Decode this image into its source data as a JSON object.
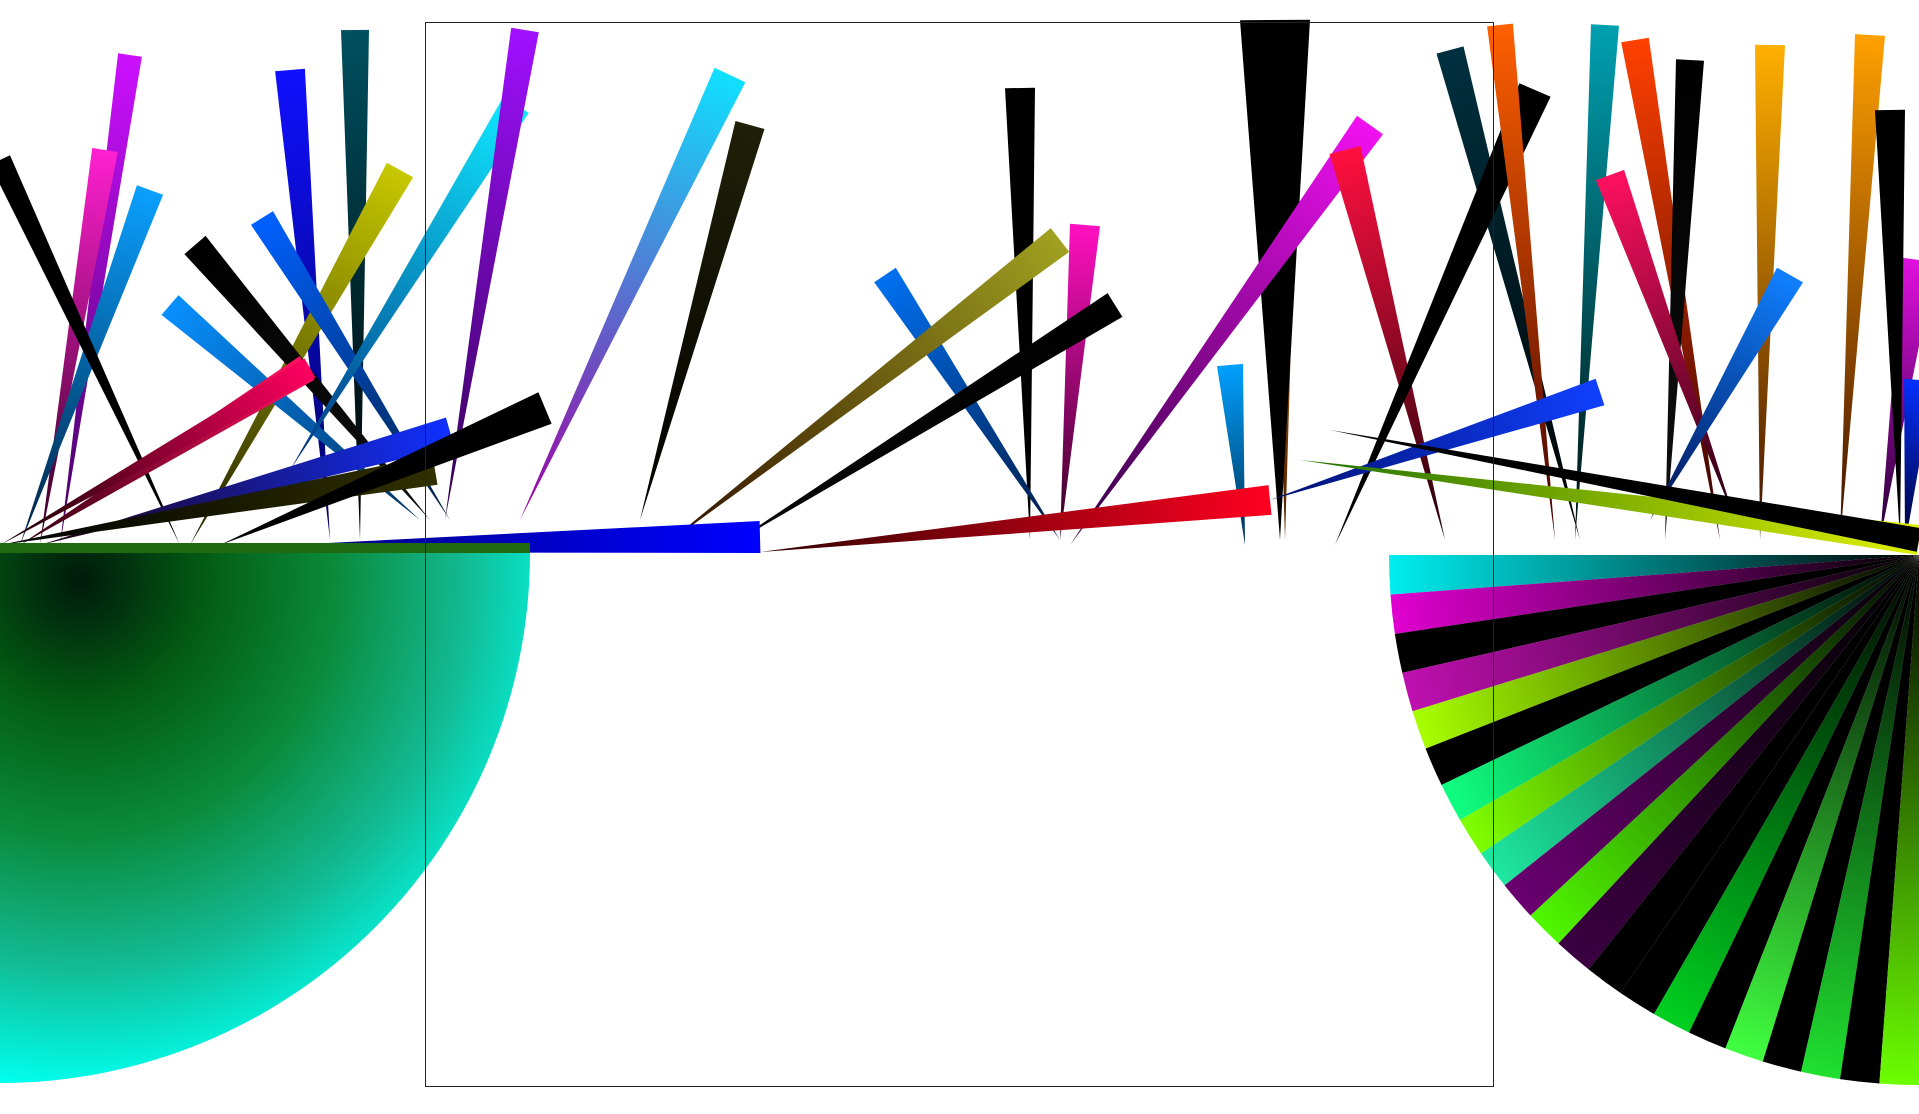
{
  "page": {
    "background": "#ffffff",
    "frame_stroke": "#222222"
  },
  "disc_left": {
    "gradient_stops": [
      "#001a0a",
      "#035c14",
      "#0a8a3a",
      "#13b890",
      "#00ffee",
      "#21f57a"
    ]
  },
  "fan_right": {
    "stripe_colors": [
      "#00eef0",
      "#e000d0",
      "#000000",
      "#c010b0",
      "#a8ff00",
      "#000000",
      "#10ff80",
      "#7fff00",
      "#1ee8a0",
      "#6a0070",
      "#50f800",
      "#3a0040",
      "#000000",
      "#000000",
      "#00d020",
      "#000000",
      "#40ff40",
      "#000000",
      "#20e030",
      "#000000",
      "#6cff00"
    ]
  },
  "spikes": [
    {
      "name": "spike-magenta-left",
      "colors": [
        "#cc10ff",
        "#400060"
      ]
    },
    {
      "name": "spike-pink-left",
      "colors": [
        "#ff20d0",
        "#300020"
      ]
    },
    {
      "name": "spike-skyblue-left",
      "colors": [
        "#0aa0ff",
        "#002040"
      ]
    },
    {
      "name": "spike-black-left-1",
      "colors": [
        "#000000",
        "#000000"
      ]
    },
    {
      "name": "spike-blue-left",
      "colors": [
        "#1010ff",
        "#000060"
      ]
    },
    {
      "name": "spike-teal-left",
      "colors": [
        "#005060",
        "#000000"
      ]
    },
    {
      "name": "spike-olive-left",
      "colors": [
        "#c8c800",
        "#202000"
      ]
    },
    {
      "name": "spike-blue-left-2",
      "colors": [
        "#0060ff",
        "#002040"
      ]
    },
    {
      "name": "spike-black-left-2",
      "colors": [
        "#000000",
        "#101010"
      ]
    },
    {
      "name": "spike-azure-left",
      "colors": [
        "#0890ff",
        "#003060"
      ]
    },
    {
      "name": "spike-crimson-left",
      "colors": [
        "#ff1060",
        "#300010"
      ]
    },
    {
      "name": "spike-cyan-left",
      "colors": [
        "#10e8ff",
        "#003080"
      ]
    },
    {
      "name": "spike-violet-center",
      "colors": [
        "#a010ff",
        "#300050"
      ]
    },
    {
      "name": "spike-cyanmag-center",
      "colors": [
        "#10e0ff",
        "#a000a0"
      ]
    },
    {
      "name": "spike-dark-center",
      "colors": [
        "#202008",
        "#000000"
      ]
    },
    {
      "name": "spike-black-center-1",
      "colors": [
        "#000000",
        "#000000"
      ]
    },
    {
      "name": "spike-azure-center",
      "colors": [
        "#0070f0",
        "#001840"
      ]
    },
    {
      "name": "spike-pink-center",
      "colors": [
        "#ff10c0",
        "#300020"
      ]
    },
    {
      "name": "spike-olive-center",
      "colors": [
        "#a0a020",
        "#301000"
      ]
    },
    {
      "name": "spike-black-center-2",
      "colors": [
        "#000000",
        "#080808"
      ]
    },
    {
      "name": "spike-black-center-3",
      "colors": [
        "#000000",
        "#000000"
      ]
    },
    {
      "name": "spike-orange-center",
      "colors": [
        "#ff8000",
        "#502000"
      ]
    },
    {
      "name": "spike-black-tall",
      "colors": [
        "#000000",
        "#000000"
      ]
    },
    {
      "name": "spike-magenta-center",
      "colors": [
        "#f010f0",
        "#300040"
      ]
    },
    {
      "name": "spike-red-center",
      "colors": [
        "#ff1040",
        "#200008"
      ]
    },
    {
      "name": "spike-azure-center-2",
      "colors": [
        "#00a0ff",
        "#003050"
      ]
    },
    {
      "name": "spike-teal-right",
      "colors": [
        "#003040",
        "#000000"
      ]
    },
    {
      "name": "spike-black-right-1",
      "colors": [
        "#000000",
        "#000000"
      ]
    },
    {
      "name": "spike-orange-right",
      "colors": [
        "#ff6000",
        "#400000"
      ]
    },
    {
      "name": "spike-teal-right-2",
      "colors": [
        "#00a0b0",
        "#001010"
      ]
    },
    {
      "name": "spike-orange-right-2",
      "colors": [
        "#ff4000",
        "#300000"
      ]
    },
    {
      "name": "spike-gold-right",
      "colors": [
        "#ffb000",
        "#401000"
      ]
    },
    {
      "name": "spike-black-right-2",
      "colors": [
        "#000000",
        "#101010"
      ]
    },
    {
      "name": "spike-red-right",
      "colors": [
        "#ff1060",
        "#200010"
      ]
    },
    {
      "name": "spike-blue-right",
      "colors": [
        "#1080ff",
        "#001050"
      ]
    },
    {
      "name": "spike-gold-right-2",
      "colors": [
        "#ffa000",
        "#401000"
      ]
    },
    {
      "name": "spike-magenta-right",
      "colors": [
        "#e010e0",
        "#200030"
      ]
    },
    {
      "name": "spike-black-right-3",
      "colors": [
        "#000000",
        "#000000"
      ]
    },
    {
      "name": "spike-blue-right-2",
      "colors": [
        "#0030ff",
        "#000030"
      ]
    }
  ],
  "bars": [
    {
      "name": "bar-darkred-left",
      "colors": [
        "#ff0060",
        "#100000"
      ]
    },
    {
      "name": "bar-blue-left",
      "colors": [
        "#1030ff",
        "#200010"
      ]
    },
    {
      "name": "bar-olive-left",
      "colors": [
        "#303000",
        "#000000"
      ]
    },
    {
      "name": "bar-black-mid",
      "colors": [
        "#000000",
        "#000000"
      ]
    },
    {
      "name": "bar-blue-center",
      "colors": [
        "#0000ff",
        "#000060"
      ]
    },
    {
      "name": "bar-red-center",
      "colors": [
        "#ff0020",
        "#300000"
      ]
    },
    {
      "name": "bar-blue-right",
      "colors": [
        "#1040ff",
        "#001070"
      ]
    },
    {
      "name": "bar-yellow-right",
      "colors": [
        "#e0f000",
        "#207000"
      ]
    },
    {
      "name": "bar-black-right",
      "colors": [
        "#000000",
        "#000000"
      ]
    }
  ]
}
